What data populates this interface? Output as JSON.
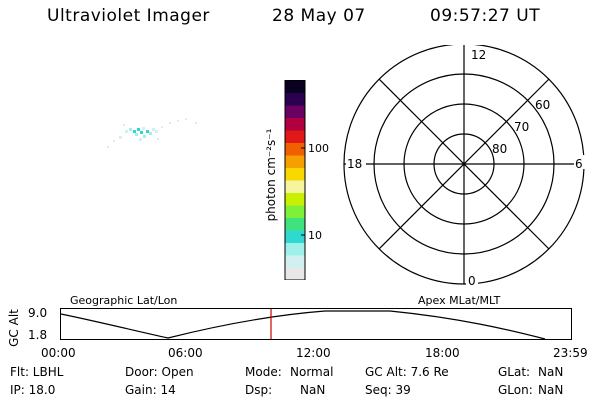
{
  "header": {
    "instrument": "Ultraviolet Imager",
    "date": "28 May 07",
    "time": "09:57:27 UT"
  },
  "colorbar": {
    "unit_label": "photon cm⁻²s⁻¹",
    "ticks": [
      "100",
      "10"
    ],
    "colors": [
      "#e8e8e8",
      "#d2f0ef",
      "#9ff0ea",
      "#2fd9d0",
      "#3fe27c",
      "#7ef03a",
      "#c8f000",
      "#f5f5a0",
      "#f8d800",
      "#f5a000",
      "#f06000",
      "#e01818",
      "#b00040",
      "#6a0060",
      "#2a0050",
      "#0a0020"
    ]
  },
  "polar": {
    "mlt_labels": {
      "top": "12",
      "left": "18",
      "right": "6",
      "bottom": "0"
    },
    "lat_labels": [
      "60",
      "70",
      "80"
    ]
  },
  "timeline": {
    "left_title": "Geographic Lat/Lon",
    "right_title": "Apex MLat/MLT",
    "axis_label": "GC Alt",
    "y_max": "9.0",
    "y_min": "1.8",
    "x_ticks": [
      "00:00",
      "06:00",
      "12:00",
      "18:00",
      "23:59"
    ],
    "marker_color": "#d00000"
  },
  "footer": {
    "filter": "Flt: LBHL",
    "door": "Door: Open",
    "mode_label": "Mode:",
    "mode_value": "Normal",
    "gc_alt": "GC Alt: 7.6 Re",
    "glat_label": "GLat:",
    "glat_value": "NaN",
    "ip": "IP: 18.0",
    "gain": "Gain: 14",
    "dsp_label": "Dsp:",
    "dsp_value": "NaN",
    "seq": "Seq: 39",
    "glon_label": "GLon:",
    "glon_value": "NaN"
  }
}
